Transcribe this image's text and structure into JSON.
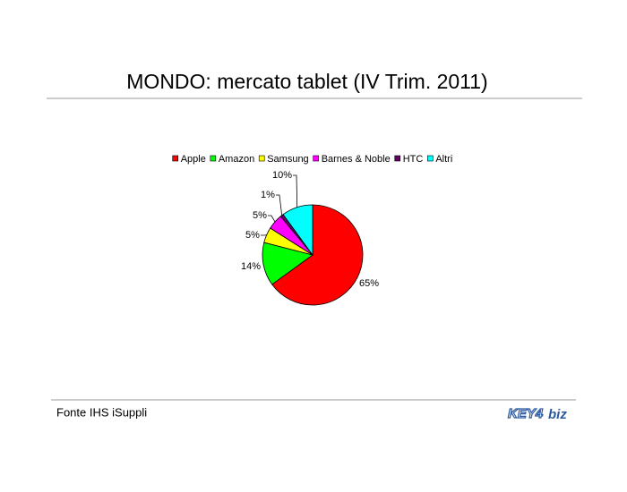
{
  "chart_data": {
    "type": "pie",
    "title": "MONDO: mercato tablet (IV Trim. 2011)",
    "categories": [
      "Apple",
      "Amazon",
      "Samsung",
      "Barnes & Noble",
      "HTC",
      "Altri"
    ],
    "values": [
      65,
      14,
      5,
      5,
      1,
      10
    ],
    "value_labels": [
      "65%",
      "14%",
      "5%",
      "5%",
      "1%",
      "10%"
    ],
    "colors": [
      "#ff0000",
      "#00ff00",
      "#ffff00",
      "#ff00ff",
      "#660066",
      "#00ffff"
    ],
    "legend": "top",
    "source": "Fonte IHS iSuppli"
  },
  "logo": {
    "left": "KEY4",
    "right": "biz"
  }
}
